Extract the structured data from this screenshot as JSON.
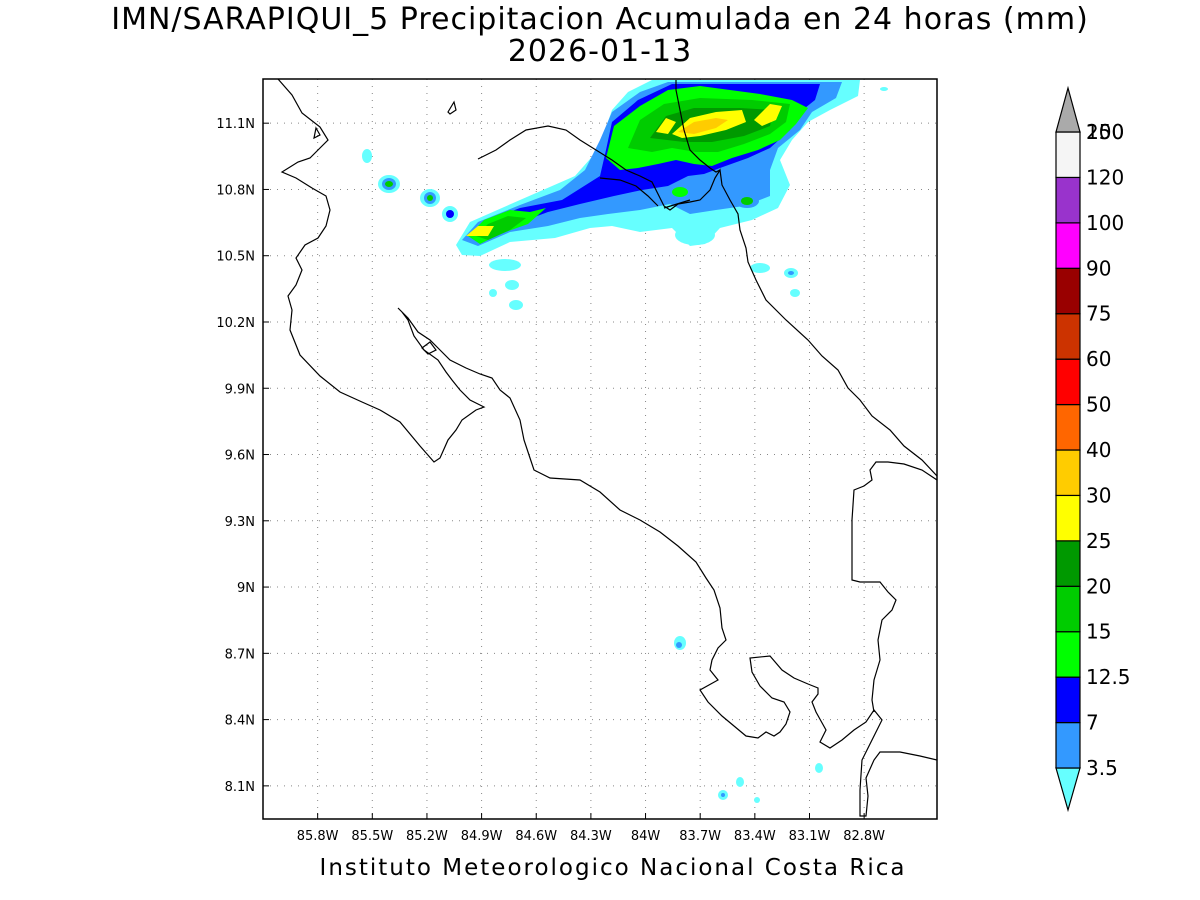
{
  "title": {
    "line1": "IMN/SARAPIQUI_5 Precipitacion Acumulada en 24 horas (mm)",
    "line2": "2026-01-13"
  },
  "footer": "Instituto Meteorologico Nacional Costa Rica",
  "map": {
    "lon_range": [
      -86.1,
      -82.4
    ],
    "lat_range": [
      7.95,
      11.3
    ],
    "lat_ticks": [
      {
        "v": 11.1,
        "label": "11.1N"
      },
      {
        "v": 10.8,
        "label": "10.8N"
      },
      {
        "v": 10.5,
        "label": "10.5N"
      },
      {
        "v": 10.2,
        "label": "10.2N"
      },
      {
        "v": 9.9,
        "label": "9.9N"
      },
      {
        "v": 9.6,
        "label": "9.6N"
      },
      {
        "v": 9.3,
        "label": "9.3N"
      },
      {
        "v": 9.0,
        "label": "9N"
      },
      {
        "v": 8.7,
        "label": "8.7N"
      },
      {
        "v": 8.4,
        "label": "8.4N"
      },
      {
        "v": 8.1,
        "label": "8.1N"
      }
    ],
    "lon_ticks": [
      {
        "v": -85.8,
        "label": "85.8W"
      },
      {
        "v": -85.5,
        "label": "85.5W"
      },
      {
        "v": -85.2,
        "label": "85.2W"
      },
      {
        "v": -84.9,
        "label": "84.9W"
      },
      {
        "v": -84.6,
        "label": "84.6W"
      },
      {
        "v": -84.3,
        "label": "84.3W"
      },
      {
        "v": -84.0,
        "label": "84W"
      },
      {
        "v": -83.7,
        "label": "83.7W"
      },
      {
        "v": -83.4,
        "label": "83.4W"
      },
      {
        "v": -83.1,
        "label": "83.1W"
      },
      {
        "v": -82.8,
        "label": "82.8W"
      }
    ],
    "grid": "dotted"
  },
  "colorbar": {
    "levels": [
      {
        "label": "3.5",
        "color": "#66ffff"
      },
      {
        "label": "7",
        "color": "#3399ff"
      },
      {
        "label": "12.5",
        "color": "#0000ff"
      },
      {
        "label": "15",
        "color": "#00ff00"
      },
      {
        "label": "20",
        "color": "#00cc00"
      },
      {
        "label": "25",
        "color": "#009900"
      },
      {
        "label": "30",
        "color": "#ffff00"
      },
      {
        "label": "40",
        "color": "#ffcc00"
      },
      {
        "label": "50",
        "color": "#ff6600"
      },
      {
        "label": "60",
        "color": "#ff0000"
      },
      {
        "label": "75",
        "color": "#cc3300"
      },
      {
        "label": "90",
        "color": "#990000"
      },
      {
        "label": "100",
        "color": "#ff00ff"
      },
      {
        "label": "120",
        "color": "#9933cc"
      },
      {
        "label": "150",
        "color": "#f5f5f5"
      },
      {
        "label": "200",
        "color": "#aaaaaa"
      }
    ]
  }
}
